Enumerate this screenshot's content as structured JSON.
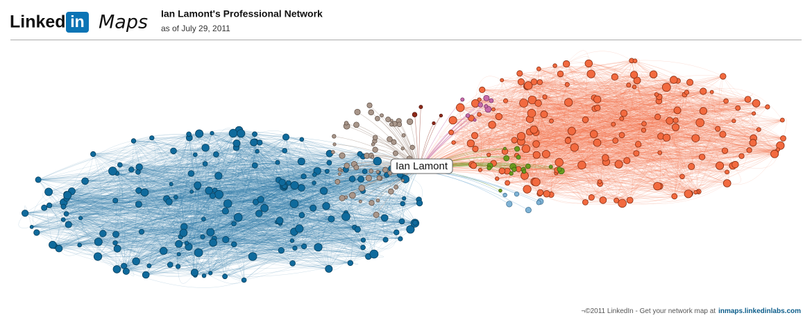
{
  "header": {
    "logo_text": "Linked",
    "logo_badge": "in",
    "product": "Maps",
    "title": "Ian Lamont's Professional Network",
    "subtitle": "as of July 29, 2011"
  },
  "network": {
    "center_label": "Ian Lamont"
  },
  "footer": {
    "text": "¬©2011 LinkedIn - Get your network map at",
    "link": "inmaps.linkedinlabs.com"
  }
}
